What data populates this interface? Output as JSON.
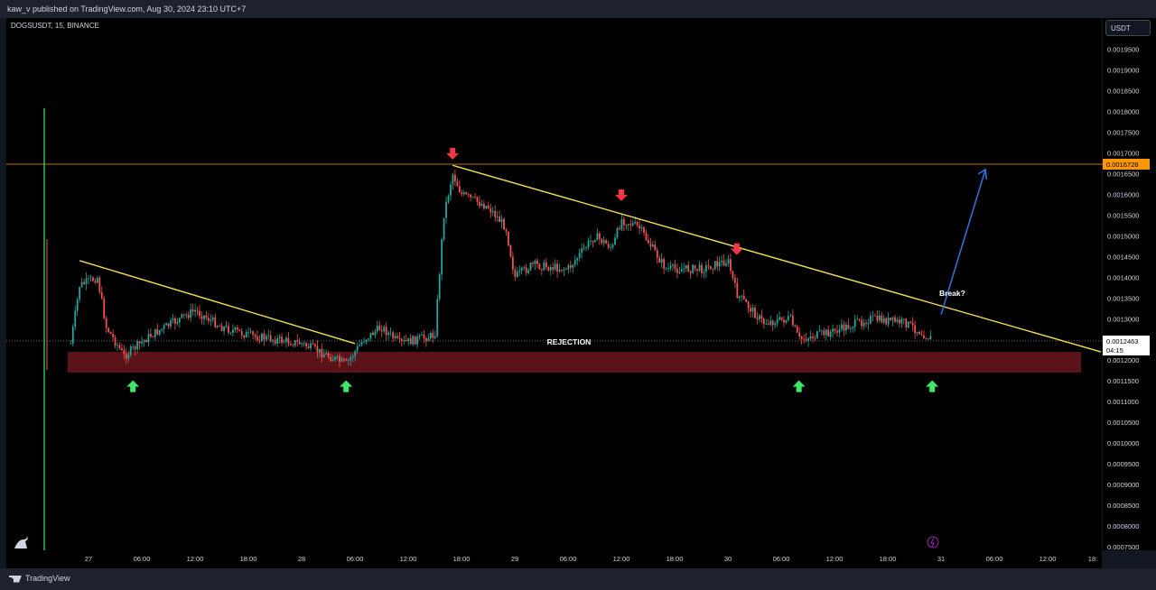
{
  "header": {
    "publish_text": "kaw_v published on TradingView.com, Aug 30, 2024 23:10 UTC+7"
  },
  "symbol": {
    "label": "DOGSUSDT, 15, BINANCE"
  },
  "currency_button": "USDT",
  "footer": {
    "brand": "TradingView"
  },
  "colors": {
    "background": "#000000",
    "up": "#26a69a",
    "down": "#ef5350",
    "trendline": "#f2e052",
    "resistance": "#ff9800",
    "support_zone": "#5b1218",
    "arrow_up": "#3ce86b",
    "arrow_down": "#f23645",
    "projection": "#2f6fd6"
  },
  "chart_data": {
    "type": "candlestick",
    "symbol": "DOGSUSDT",
    "interval": "15",
    "exchange": "BINANCE",
    "ylim": [
      0.00074,
      0.002
    ],
    "y_ticks": [
      "0.0019500",
      "0.0019000",
      "0.0018500",
      "0.0018000",
      "0.0017500",
      "0.0017000",
      "0.0016500",
      "0.0016000",
      "0.0015500",
      "0.0015000",
      "0.0014500",
      "0.0014000",
      "0.0013500",
      "0.0013000",
      "0.0012000",
      "0.0011500",
      "0.0011000",
      "0.0010500",
      "0.0010000",
      "0.0009500",
      "0.0009000",
      "0.0008500",
      "0.0008000",
      "0.0007500"
    ],
    "x_ticks": [
      "27",
      "06:00",
      "12:00",
      "18:00",
      "28",
      "06:00",
      "12:00",
      "18:00",
      "29",
      "06:00",
      "12:00",
      "18:00",
      "30",
      "06:00",
      "12:00",
      "18:00",
      "31",
      "06:00",
      "12:00",
      "18:"
    ],
    "price_path": [
      {
        "t": "26 22:00",
        "p": 0.00124
      },
      {
        "t": "26 23:00",
        "p": 0.00138
      },
      {
        "t": "27 01:00",
        "p": 0.0014
      },
      {
        "t": "27 02:00",
        "p": 0.00128
      },
      {
        "t": "27 04:00",
        "p": 0.00121
      },
      {
        "t": "27 07:00",
        "p": 0.00126
      },
      {
        "t": "27 12:00",
        "p": 0.00132
      },
      {
        "t": "27 15:00",
        "p": 0.00128
      },
      {
        "t": "27 18:00",
        "p": 0.00126
      },
      {
        "t": "28 00:00",
        "p": 0.00124
      },
      {
        "t": "28 04:00",
        "p": 0.0012
      },
      {
        "t": "28 05:00",
        "p": 0.00119
      },
      {
        "t": "28 07:00",
        "p": 0.00125
      },
      {
        "t": "28 09:00",
        "p": 0.00128
      },
      {
        "t": "28 11:00",
        "p": 0.00124
      },
      {
        "t": "28 15:00",
        "p": 0.00126
      },
      {
        "t": "28 16:00",
        "p": 0.00155
      },
      {
        "t": "28 17:00",
        "p": 0.00165
      },
      {
        "t": "28 18:00",
        "p": 0.0016
      },
      {
        "t": "28 21:00",
        "p": 0.00157
      },
      {
        "t": "28 23:00",
        "p": 0.00152
      },
      {
        "t": "29 00:00",
        "p": 0.0014
      },
      {
        "t": "29 02:00",
        "p": 0.00143
      },
      {
        "t": "29 06:00",
        "p": 0.00142
      },
      {
        "t": "29 09:00",
        "p": 0.0015
      },
      {
        "t": "29 11:00",
        "p": 0.00147
      },
      {
        "t": "29 12:00",
        "p": 0.00154
      },
      {
        "t": "29 14:00",
        "p": 0.00152
      },
      {
        "t": "29 17:00",
        "p": 0.00142
      },
      {
        "t": "29 21:00",
        "p": 0.00142
      },
      {
        "t": "30 00:00",
        "p": 0.00144
      },
      {
        "t": "30 01:00",
        "p": 0.00136
      },
      {
        "t": "30 04:00",
        "p": 0.00129
      },
      {
        "t": "30 07:00",
        "p": 0.0013
      },
      {
        "t": "30 08:00",
        "p": 0.00125
      },
      {
        "t": "30 12:00",
        "p": 0.00127
      },
      {
        "t": "30 16:00",
        "p": 0.0013
      },
      {
        "t": "30 20:00",
        "p": 0.00129
      },
      {
        "t": "30 23:00",
        "p": 0.00125
      }
    ],
    "annotations": {
      "resistance_level": 0.0016728,
      "resistance_label": "0.0016728",
      "current_price": 0.0012463,
      "current_price_label": "0.0012463",
      "countdown": "04:15",
      "support_zone": [
        0.00117,
        0.00122
      ],
      "support_label": "REJECTION",
      "break_label": "Break?",
      "trendline_1": [
        {
          "t": "26 23:00",
          "p": 0.00144
        },
        {
          "t": "28 06:00",
          "p": 0.00124
        }
      ],
      "trendline_2": [
        {
          "t": "28 17:00",
          "p": 0.00167
        },
        {
          "t": "31 18:00",
          "p": 0.00122
        }
      ],
      "projection": [
        {
          "t": "31 00:00",
          "p": 0.00131
        },
        {
          "t": "31 05:00",
          "p": 0.00166
        }
      ],
      "up_arrows": [
        {
          "t": "27 05:00",
          "p": 0.00116
        },
        {
          "t": "28 05:00",
          "p": 0.00116
        },
        {
          "t": "30 08:00",
          "p": 0.00116
        },
        {
          "t": "30 23:00",
          "p": 0.00116
        }
      ],
      "down_arrows": [
        {
          "t": "28 17:00",
          "p": 0.00171
        },
        {
          "t": "29 12:00",
          "p": 0.00161
        },
        {
          "t": "30 01:00",
          "p": 0.00148
        }
      ]
    }
  }
}
